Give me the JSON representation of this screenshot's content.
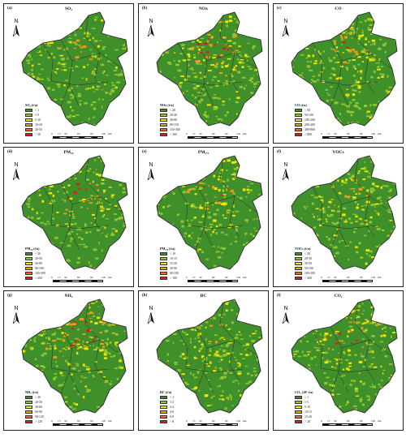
{
  "north_label": "N",
  "colors": {
    "base_green": "#3f8f2a",
    "mid_green": "#8fc531",
    "yellow": "#f2e400",
    "orange": "#f39a1c",
    "red": "#e31a1c",
    "boundary": "#2b2b2b"
  },
  "scale": {
    "ticks": [
      "0",
      "15",
      "30",
      "60",
      "90",
      "120"
    ],
    "unit": "km"
  },
  "panels": [
    {
      "tag": "(a)",
      "title": "SO₂",
      "legend_title": "SO₂ (t/a)",
      "classes": [
        "< 1",
        "1-5",
        "5-10",
        "10-20",
        "20-50",
        "> 50"
      ],
      "hotspot_level": 0.35
    },
    {
      "tag": "(b)",
      "title": "NOx",
      "legend_title": "NOx (t/a)",
      "classes": [
        "< 20",
        "20-40",
        "40-80",
        "80-150",
        "150-300",
        "> 300"
      ],
      "hotspot_level": 0.55
    },
    {
      "tag": "(c)",
      "title": "CO",
      "legend_title": "CO (t/a)",
      "classes": [
        "< 50",
        "50-100",
        "100-200",
        "200-400",
        "400-800",
        "> 800"
      ],
      "hotspot_level": 0.4
    },
    {
      "tag": "(d)",
      "title": "PM₁₀",
      "legend_title": "PM₁₀ (t/a)",
      "classes": [
        "< 20",
        "20-50",
        "50-80",
        "80-100",
        "100-200",
        "> 200"
      ],
      "hotspot_level": 0.55
    },
    {
      "tag": "(e)",
      "title": "PM₂.₅",
      "legend_title": "PM₂.₅ (t/a)",
      "classes": [
        "< 10",
        "10-15",
        "15-30",
        "30-60",
        "60-100",
        "> 100"
      ],
      "hotspot_level": 0.5
    },
    {
      "tag": "(f)",
      "title": "VOCs",
      "legend_title": "VOCs (t/a)",
      "classes": [
        "< 20",
        "20-30",
        "30-50",
        "50-100",
        "100-200",
        "> 200"
      ],
      "hotspot_level": 0.35
    },
    {
      "tag": "(g)",
      "title": "NH₃",
      "legend_title": "NH₃ (t/a)",
      "classes": [
        "< 20",
        "20-30",
        "30-60",
        "60-90",
        "90-120",
        "> 120"
      ],
      "hotspot_level": 0.6
    },
    {
      "tag": "(h)",
      "title": "BC",
      "legend_title": "BC (t/a)",
      "classes": [
        "< 1",
        "1-2",
        "2-4",
        "4-6",
        "6-8",
        "> 8"
      ],
      "hotspot_level": 0.3
    },
    {
      "tag": "(i)",
      "title": "CO₂",
      "legend_title": "CO₂ (10⁴ t/a)",
      "classes": [
        "< 1",
        "1-5",
        "5-10",
        "10-15",
        "15-20",
        "> 20"
      ],
      "hotspot_level": 0.5
    }
  ]
}
